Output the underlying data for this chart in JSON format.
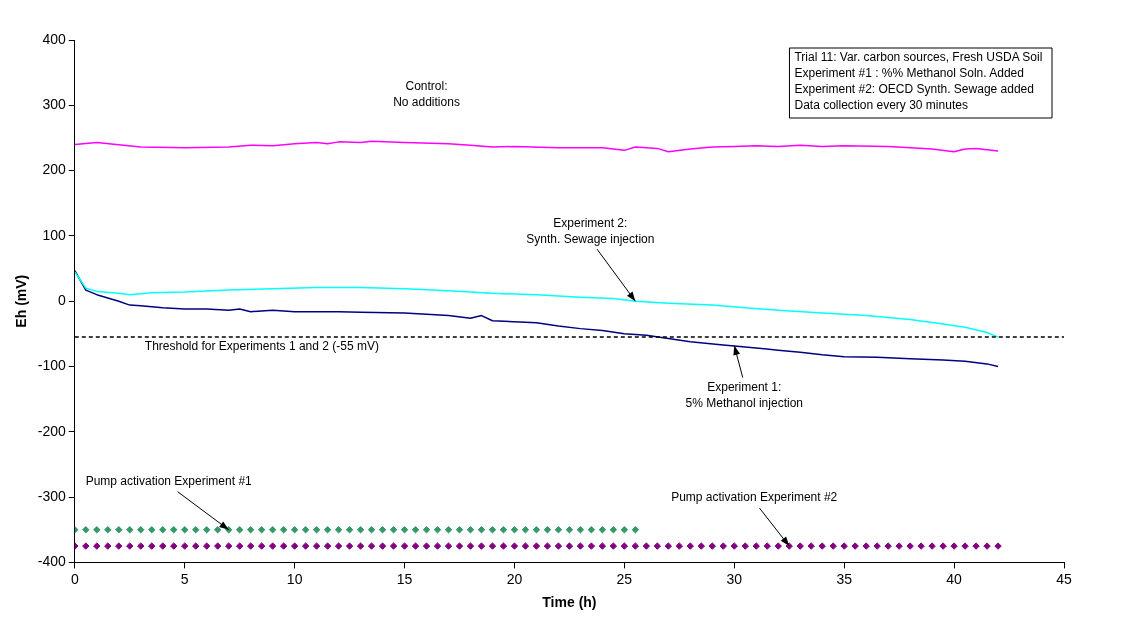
{
  "chart_data": {
    "type": "line",
    "xlabel": "Time (h)",
    "ylabel": "Eh (mV)",
    "xlim": [
      0,
      45
    ],
    "xticks": [
      0,
      5,
      10,
      15,
      20,
      25,
      30,
      35,
      40,
      45
    ],
    "ylim": [
      -400,
      400
    ],
    "yticks": [
      -400,
      -300,
      -200,
      -100,
      0,
      100,
      200,
      300,
      400
    ],
    "grid": false,
    "legend": false,
    "marker": "none",
    "line_style": "solid",
    "series": [
      {
        "type": "line",
        "color": "#ff00ff",
        "x": [
          0,
          1,
          3,
          5,
          7,
          8,
          9,
          10,
          11,
          11.5,
          12,
          13,
          13.5,
          15,
          17,
          18,
          19,
          20,
          22,
          24,
          25,
          25.5,
          26.5,
          27,
          28,
          29,
          30,
          31,
          32,
          33,
          34,
          35,
          37,
          38,
          39,
          40,
          40.5,
          41,
          42
        ],
        "values": [
          240,
          243,
          236,
          235,
          236,
          239,
          238,
          241,
          243,
          241,
          244,
          243,
          245,
          243,
          241,
          239,
          236,
          237,
          235,
          235,
          231,
          236,
          234,
          229,
          233,
          236,
          237,
          238,
          237,
          239,
          237,
          238,
          237,
          235,
          233,
          229,
          233,
          234,
          230
        ]
      },
      {
        "type": "line",
        "color": "#00ffff",
        "x": [
          0,
          0.5,
          1,
          2,
          2.5,
          3.5,
          5,
          7,
          9,
          11,
          13,
          15,
          17,
          19,
          21,
          23,
          24.5,
          25.5,
          27,
          29,
          30.5,
          32,
          34,
          36,
          38,
          39.5,
          40.5,
          41.5,
          42
        ],
        "values": [
          45,
          20,
          15,
          12,
          10,
          13,
          14,
          17,
          19,
          21,
          21,
          19,
          16,
          12,
          10,
          6,
          4,
          0,
          -3,
          -6,
          -10,
          -14,
          -18,
          -22,
          -28,
          -35,
          -40,
          -48,
          -55
        ]
      },
      {
        "type": "line",
        "color": "#000080",
        "x": [
          0,
          0.5,
          1,
          2,
          2.5,
          3,
          4,
          5,
          6,
          7,
          7.5,
          8,
          9,
          10,
          12,
          13,
          15,
          17,
          18,
          18.5,
          19,
          21,
          22,
          23,
          24,
          25,
          26,
          27,
          28,
          29.5,
          30.5,
          32,
          33,
          34,
          35,
          36.5,
          38,
          39.5,
          40.5,
          41.5,
          42
        ],
        "values": [
          47,
          17,
          10,
          0,
          -6,
          -7,
          -10,
          -12,
          -12,
          -14,
          -12,
          -16,
          -14,
          -16,
          -16,
          -17,
          -18,
          -22,
          -26,
          -22,
          -30,
          -33,
          -38,
          -42,
          -45,
          -50,
          -52,
          -57,
          -62,
          -67,
          -70,
          -75,
          -78,
          -82,
          -85,
          -86,
          -88,
          -90,
          -92,
          -96,
          -100
        ]
      },
      {
        "type": "scatter",
        "marker": "diamond",
        "color": "#339966",
        "x": [
          0,
          0.5,
          1,
          1.5,
          2,
          2.5,
          3,
          3.5,
          4,
          4.5,
          5,
          5.5,
          6,
          6.5,
          7,
          7.5,
          8,
          8.5,
          9,
          9.5,
          10,
          10.5,
          11,
          11.5,
          12,
          12.5,
          13,
          13.5,
          14,
          14.5,
          15,
          15.5,
          16,
          16.5,
          17,
          17.5,
          18,
          18.5,
          19,
          19.5,
          20,
          20.5,
          21,
          21.5,
          22,
          22.5,
          23,
          23.5,
          24,
          24.5,
          25,
          25.5
        ],
        "values": [
          -350,
          -350,
          -350,
          -350,
          -350,
          -350,
          -350,
          -350,
          -350,
          -350,
          -350,
          -350,
          -350,
          -350,
          -350,
          -350,
          -350,
          -350,
          -350,
          -350,
          -350,
          -350,
          -350,
          -350,
          -350,
          -350,
          -350,
          -350,
          -350,
          -350,
          -350,
          -350,
          -350,
          -350,
          -350,
          -350,
          -350,
          -350,
          -350,
          -350,
          -350,
          -350,
          -350,
          -350,
          -350,
          -350,
          -350,
          -350,
          -350,
          -350,
          -350,
          -350
        ]
      },
      {
        "type": "scatter",
        "marker": "diamond",
        "color": "#800080",
        "x": [
          0,
          0.5,
          1,
          1.5,
          2,
          2.5,
          3,
          3.5,
          4,
          4.5,
          5,
          5.5,
          6,
          6.5,
          7,
          7.5,
          8,
          8.5,
          9,
          9.5,
          10,
          10.5,
          11,
          11.5,
          12,
          12.5,
          13,
          13.5,
          14,
          14.5,
          15,
          15.5,
          16,
          16.5,
          17,
          17.5,
          18,
          18.5,
          19,
          19.5,
          20,
          20.5,
          21,
          21.5,
          22,
          22.5,
          23,
          23.5,
          24,
          24.5,
          25,
          25.5,
          26,
          26.5,
          27,
          27.5,
          28,
          28.5,
          29,
          29.5,
          30,
          30.5,
          31,
          31.5,
          32,
          32.5,
          33,
          33.5,
          34,
          34.5,
          35,
          35.5,
          36,
          36.5,
          37,
          37.5,
          38,
          38.5,
          39,
          39.5,
          40,
          40.5,
          41,
          41.5,
          42
        ],
        "values": [
          -375,
          -375,
          -375,
          -375,
          -375,
          -375,
          -375,
          -375,
          -375,
          -375,
          -375,
          -375,
          -375,
          -375,
          -375,
          -375,
          -375,
          -375,
          -375,
          -375,
          -375,
          -375,
          -375,
          -375,
          -375,
          -375,
          -375,
          -375,
          -375,
          -375,
          -375,
          -375,
          -375,
          -375,
          -375,
          -375,
          -375,
          -375,
          -375,
          -375,
          -375,
          -375,
          -375,
          -375,
          -375,
          -375,
          -375,
          -375,
          -375,
          -375,
          -375,
          -375,
          -375,
          -375,
          -375,
          -375,
          -375,
          -375,
          -375,
          -375,
          -375,
          -375,
          -375,
          -375,
          -375,
          -375,
          -375,
          -375,
          -375,
          -375,
          -375,
          -375,
          -375,
          -375,
          -375,
          -375,
          -375,
          -375,
          -375,
          -375,
          -375,
          -375,
          -375,
          -375,
          -375
        ]
      }
    ],
    "ref_lines": [
      {
        "axis": "y",
        "value": -55,
        "label": "Threshold for Experiments 1 and 2 (-55 mV)",
        "color": "#000000",
        "line_style": "dashed"
      }
    ],
    "annotations": [
      "Trial 11: Var. carbon sources, Fresh USDA Soil\nExperiment #1 : %% Methanol Soln. Added\nExperiment #2: OECD Synth. Sewage added\nData collection every 30 minutes",
      {
        "text": "Control:\nNo additions",
        "x": 16,
        "y": 243
      },
      {
        "text": "Experiment 2:\nSynth. Sewage injection",
        "x": 25.5,
        "y": 0
      },
      {
        "text": "Experiment 1:\n5% Methanol injection",
        "x": 30,
        "y": -68
      },
      {
        "text": "Pump activation Experiment #1",
        "x": 7,
        "y": -350
      },
      {
        "text": "Pump activation Experiment #2",
        "x": 32.5,
        "y": -375
      }
    ]
  }
}
